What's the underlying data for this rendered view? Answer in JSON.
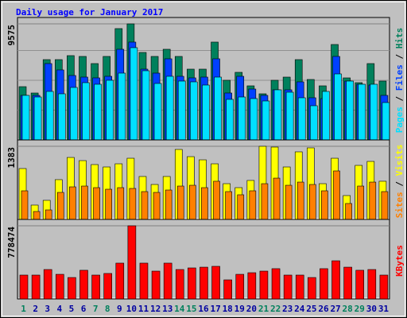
{
  "chart_data": {
    "type": "bar",
    "title": "Daily usage for January 2017",
    "categories": [
      "1",
      "2",
      "3",
      "4",
      "5",
      "6",
      "7",
      "8",
      "9",
      "10",
      "11",
      "12",
      "13",
      "14",
      "15",
      "16",
      "17",
      "18",
      "19",
      "20",
      "21",
      "22",
      "23",
      "24",
      "25",
      "26",
      "27",
      "28",
      "29",
      "30",
      "31"
    ],
    "category_colors": [
      "#00805c",
      "#0000a0",
      "#0000a0",
      "#0000a0",
      "#0000a0",
      "#0000a0",
      "#00805c",
      "#00805c",
      "#0000a0",
      "#0000a0",
      "#0000a0",
      "#0000a0",
      "#0000a0",
      "#00805c",
      "#00805c",
      "#0000a0",
      "#0000a0",
      "#0000a0",
      "#0000a0",
      "#0000a0",
      "#00805c",
      "#00805c",
      "#0000a0",
      "#0000a0",
      "#0000a0",
      "#0000a0",
      "#0000a0",
      "#00805c",
      "#00805c",
      "#0000a0",
      "#0000a0"
    ],
    "panels": [
      {
        "ylim": [
          0,
          9575
        ],
        "yticks": [
          9575
        ],
        "series": [
          {
            "name": "Hits",
            "color": "#00805c",
            "values": [
              4394,
              3870,
              6625,
              6625,
              6954,
              6888,
              6298,
              6888,
              9184,
              9575,
              7216,
              6888,
              7478,
              6888,
              5838,
              5838,
              8069,
              4920,
              5576,
              4461,
              3805,
              4920,
              5182,
              6625,
              4986,
              4461,
              7872,
              5117,
              4723,
              6298,
              4854
            ]
          },
          {
            "name": "Files",
            "color": "#0040ff",
            "values": [
              3674,
              3674,
              6298,
              5773,
              5314,
              5182,
              5117,
              5248,
              7478,
              8069,
              5838,
              5510,
              6691,
              5248,
              5117,
              5182,
              6691,
              3870,
              5248,
              4198,
              3674,
              4133,
              4133,
              4789,
              3477,
              3411,
              6888,
              4854,
              4592,
              4526,
              3674
            ]
          },
          {
            "name": "Pages",
            "color": "#00e0ff",
            "values": [
              3674,
              3542,
              4002,
              3805,
              4330,
              4723,
              4592,
              4920,
              5510,
              7610,
              5707,
              4658,
              5248,
              4854,
              4789,
              4526,
              5182,
              3346,
              3542,
              3411,
              3214,
              4133,
              3936,
              3477,
              2821,
              4002,
              5445,
              4854,
              4592,
              4592,
              3083
            ]
          }
        ]
      },
      {
        "ylim": [
          0,
          1383
        ],
        "yticks": [
          1383
        ],
        "series": [
          {
            "name": "Visits",
            "color": "#ffff00",
            "values": [
              962,
              271,
              361,
              752,
              1172,
              1112,
              1037,
              992,
              1052,
              1157,
              812,
              661,
              812,
              1323,
              1187,
              1127,
              1052,
              676,
              601,
              737,
              1383,
              1368,
              992,
              1278,
              1353,
              676,
              1157,
              451,
              1022,
              1097,
              722
            ]
          },
          {
            "name": "Sites",
            "color": "#ff8000",
            "values": [
              541,
              150,
              180,
              511,
              616,
              631,
              601,
              571,
              601,
              586,
              526,
              511,
              556,
              631,
              646,
              601,
              722,
              526,
              466,
              541,
              676,
              781,
              646,
              706,
              661,
              541,
              917,
              301,
              631,
              706,
              526
            ]
          }
        ]
      },
      {
        "ylim": [
          0,
          778474
        ],
        "yticks": [
          778474
        ],
        "series": [
          {
            "name": "KBytes",
            "color": "#ff0000",
            "values": [
              253860,
              253860,
              313000,
              262000,
              228000,
              305000,
              253860,
              271000,
              381000,
              778474,
              381000,
              296000,
              381000,
              313000,
              330000,
              338000,
              347000,
              203000,
              262000,
              279000,
              296000,
              322000,
              253860,
              253860,
              228000,
              322000,
              406000,
              338000,
              305000,
              313000,
              253860
            ]
          }
        ]
      }
    ]
  }
}
